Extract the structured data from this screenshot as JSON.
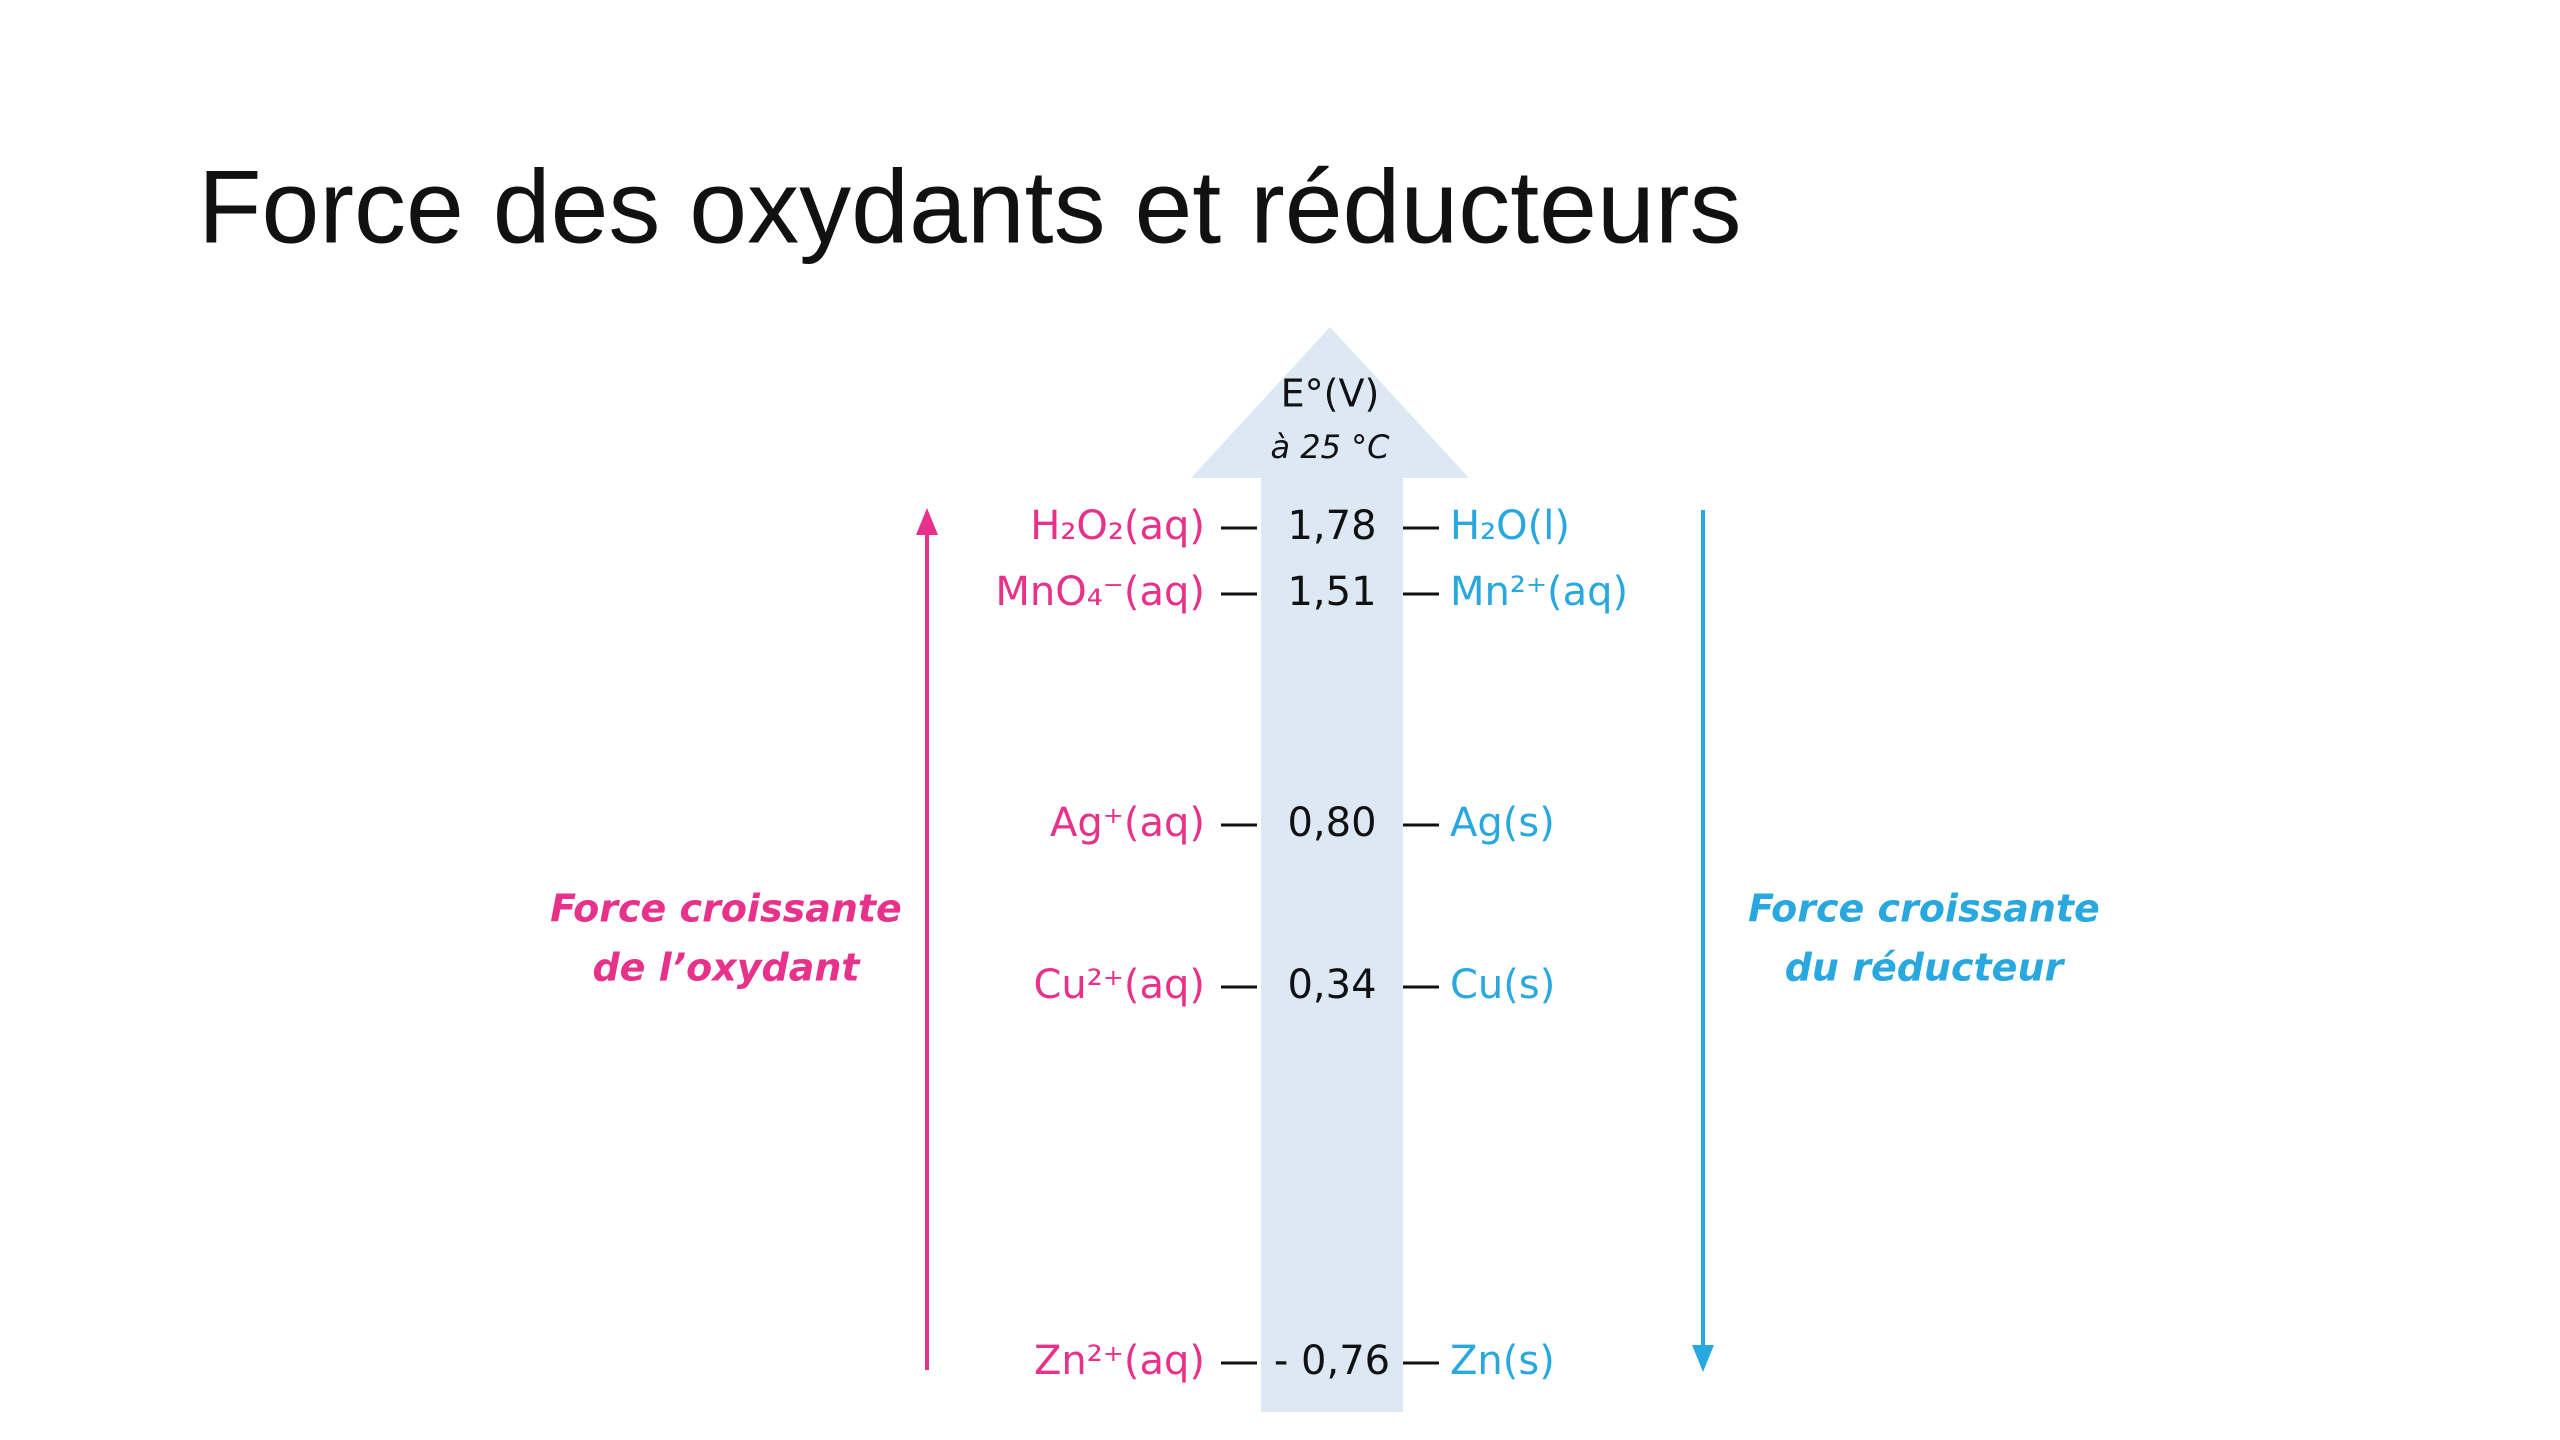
{
  "title": "Force des oxydants et réducteurs",
  "scale": {
    "header": "E°(V)",
    "condition": "à 25 °C"
  },
  "left_label": [
    "Force croissante",
    "de l’oxydant"
  ],
  "right_label": [
    "Force croissante",
    "du réducteur"
  ],
  "couples": [
    {
      "oxidant": "H₂O₂(aq)",
      "potential": "1,78",
      "reductant": "H₂O(l)"
    },
    {
      "oxidant": "MnO₄⁻(aq)",
      "potential": "1,51",
      "reductant": "Mn²⁺(aq)"
    },
    {
      "oxidant": "Ag⁺(aq)",
      "potential": "0,80",
      "reductant": "Ag(s)"
    },
    {
      "oxidant": "Cu²⁺(aq)",
      "potential": "0,34",
      "reductant": "Cu(s)"
    },
    {
      "oxidant": "Zn²⁺(aq)",
      "potential": "- 0,76",
      "reductant": "Zn(s)"
    }
  ]
}
